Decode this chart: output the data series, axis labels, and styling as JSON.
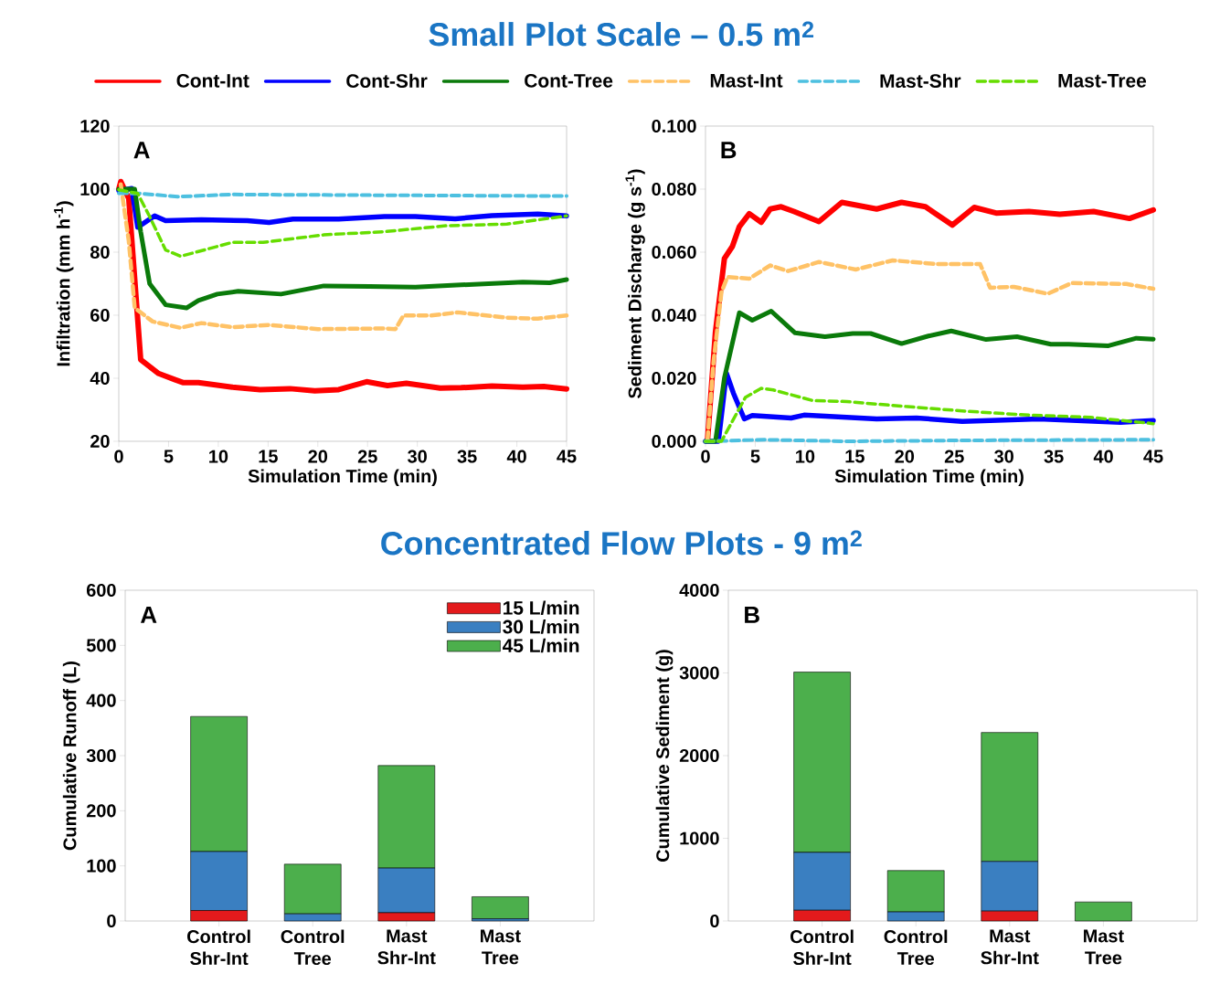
{
  "chart_data": [
    {
      "type": "line",
      "title": "Small Plot Scale – 0.5 m$^{2}$",
      "xlabel": "Simulation Time (min)",
      "ylabel": "Infiltration (mm h$^{-1}$)",
      "annotations": [
        "A"
      ],
      "legend": "top",
      "xlim": [
        0,
        45
      ],
      "xticks": [
        0,
        5,
        10,
        15,
        20,
        25,
        30,
        35,
        40,
        45
      ],
      "ylim": [
        20,
        120
      ],
      "yticks": [
        20,
        40,
        60,
        80,
        100,
        120
      ],
      "series": [
        {
          "name": "Cont-Int",
          "color": "#ff0000",
          "line_style": "solid",
          "x": [
            0,
            0.2,
            1,
            2.2,
            4,
            5.6,
            6.5,
            8,
            11.4,
            14.2,
            17.2,
            19.7,
            22.1,
            24.9,
            27,
            28.9,
            32.3,
            34.4,
            37.5,
            40.6,
            42.7,
            45
          ],
          "values": [
            100,
            102.4,
            97,
            45.9,
            41.5,
            39.6,
            38.6,
            38.6,
            37.2,
            36.4,
            36.7,
            36,
            36.4,
            38.9,
            37.7,
            38.4,
            36.9,
            37,
            37.5,
            37.2,
            37.4,
            36.6
          ]
        },
        {
          "name": "Cont-Shr",
          "color": "#0000ff",
          "line_style": "solid",
          "x": [
            0,
            1.3,
            1.9,
            3.6,
            4.7,
            8.3,
            12.9,
            15.1,
            17.5,
            22.1,
            26.7,
            29.8,
            33.8,
            37.5,
            42.1,
            45
          ],
          "values": [
            99.5,
            100.2,
            87.9,
            91.5,
            90,
            90.3,
            90,
            89.4,
            90.5,
            90.5,
            91.3,
            91.3,
            90.6,
            91.6,
            92.1,
            91.5
          ]
        },
        {
          "name": "Cont-Tree",
          "color": "#0a7a0a",
          "line_style": "solid",
          "x": [
            0,
            1.6,
            2.2,
            3.1,
            4.7,
            6.8,
            8,
            9.9,
            12,
            16.3,
            20.6,
            25.2,
            29.8,
            34.4,
            40.6,
            43.3,
            45
          ],
          "values": [
            100,
            100,
            86.5,
            70,
            63.3,
            62.3,
            64.7,
            66.7,
            67.6,
            66.7,
            69.3,
            69.1,
            68.9,
            69.6,
            70.5,
            70.3,
            71.3
          ]
        },
        {
          "name": "Mast-Int",
          "color": "#ffc266",
          "line_style": "dashed",
          "x": [
            0.2,
            1,
            1.6,
            3.4,
            6.2,
            8.3,
            11.4,
            15.1,
            20,
            26.7,
            27.8,
            28.6,
            31.3,
            34.1,
            39,
            42.1,
            45
          ],
          "values": [
            101.5,
            83.6,
            62.3,
            58,
            56,
            57.5,
            56.2,
            56.9,
            55.6,
            55.8,
            55.6,
            59.9,
            59.9,
            60.9,
            59.2,
            58.9,
            59.9
          ]
        },
        {
          "name": "Mast-Shr",
          "color": "#4dc0e0",
          "line_style": "dashed",
          "x": [
            0,
            2.2,
            5.9,
            11.4,
            23.7,
            45
          ],
          "values": [
            98.7,
            98.6,
            97.6,
            98.3,
            98.1,
            97.8
          ]
        },
        {
          "name": "Mast-Tree",
          "color": "#66dd00",
          "line_style": "dashed",
          "x": [
            0,
            1.9,
            3.1,
            4.7,
            6.2,
            8,
            11.4,
            14.5,
            20.6,
            26.7,
            32.9,
            39,
            45
          ],
          "values": [
            99.8,
            98.6,
            91.3,
            80.7,
            78.7,
            80.2,
            83.1,
            83.1,
            85.5,
            86.5,
            88.4,
            88.9,
            91.5
          ]
        }
      ]
    },
    {
      "type": "line",
      "xlabel": "Simulation Time (min)",
      "ylabel": "Sediment Discharge (g s$^{-1}$)",
      "annotations": [
        "B"
      ],
      "xlim": [
        0,
        45
      ],
      "xticks": [
        0,
        5,
        10,
        15,
        20,
        25,
        30,
        35,
        40,
        45
      ],
      "ylim": [
        0,
        0.1
      ],
      "yticks": [
        {
          "value": 0,
          "label": "0.000"
        },
        {
          "value": 0.02,
          "label": "0.020"
        },
        {
          "value": 0.04,
          "label": "0.040"
        },
        {
          "value": 0.06,
          "label": "0.060"
        },
        {
          "value": 0.08,
          "label": "0.080"
        },
        {
          "value": 0.1,
          "label": "0.100"
        }
      ],
      "series": [
        {
          "color": "#ff0000",
          "line_style": "solid",
          "x": [
            0.2,
            1,
            1.9,
            2.7,
            3.4,
            4.4,
            5.6,
            6.5,
            7.6,
            8.9,
            11.4,
            13.7,
            17.2,
            19.7,
            22.1,
            24.8,
            27,
            29.2,
            32.5,
            35.6,
            39,
            42.6,
            45
          ],
          "values": [
            0.0003,
            0.0347,
            0.058,
            0.0618,
            0.0681,
            0.0722,
            0.0695,
            0.0737,
            0.0744,
            0.0729,
            0.0697,
            0.0758,
            0.0737,
            0.0758,
            0.0744,
            0.0686,
            0.0742,
            0.0724,
            0.0729,
            0.072,
            0.0729,
            0.0707,
            0.0734
          ]
        },
        {
          "color": "#0000ff",
          "line_style": "solid",
          "x": [
            0,
            1.3,
            2.1,
            2.8,
            3.9,
            4.7,
            8.6,
            9.9,
            17.2,
            21.2,
            25.8,
            33.5,
            41.7,
            45
          ],
          "values": [
            0,
            0,
            0.0216,
            0.0153,
            0.0071,
            0.0082,
            0.0074,
            0.0083,
            0.0071,
            0.0074,
            0.0063,
            0.0071,
            0.006,
            0.0066
          ]
        },
        {
          "color": "#0a7a0a",
          "line_style": "solid",
          "x": [
            0,
            1,
            1.9,
            3.4,
            4.7,
            6.6,
            9,
            12,
            14.8,
            16.6,
            19.7,
            22.4,
            24.7,
            28.2,
            31.3,
            34.7,
            36.5,
            40.5,
            43.3,
            45
          ],
          "values": [
            0,
            0,
            0.0201,
            0.0408,
            0.0384,
            0.0413,
            0.0344,
            0.0332,
            0.0342,
            0.0342,
            0.031,
            0.0334,
            0.035,
            0.0323,
            0.0332,
            0.0308,
            0.0308,
            0.0303,
            0.0327,
            0.0324
          ]
        },
        {
          "color": "#ffc266",
          "line_style": "dashed",
          "x": [
            0.2,
            0.8,
            1.6,
            2.2,
            4.4,
            6.5,
            8.3,
            11.4,
            15.1,
            18.8,
            23.3,
            27.6,
            28.6,
            31,
            34.4,
            36.8,
            42.3,
            45
          ],
          "values": [
            0.0003,
            0.025,
            0.0473,
            0.0521,
            0.0516,
            0.0558,
            0.054,
            0.0569,
            0.0545,
            0.0574,
            0.0562,
            0.0562,
            0.0487,
            0.049,
            0.0468,
            0.0502,
            0.0499,
            0.0484
          ]
        },
        {
          "color": "#4dc0e0",
          "line_style": "dashed",
          "x": [
            0,
            5.9,
            14.2,
            26.4,
            45
          ],
          "values": [
            0,
            0.0005,
            0,
            0.0003,
            0.0005
          ]
        },
        {
          "color": "#66dd00",
          "line_style": "dashed",
          "x": [
            0,
            1.6,
            4,
            5.6,
            6.8,
            10.8,
            14.2,
            20.3,
            26.4,
            32.5,
            38.7,
            45
          ],
          "values": [
            0,
            0,
            0.0139,
            0.0168,
            0.0163,
            0.0129,
            0.0126,
            0.011,
            0.0095,
            0.0083,
            0.0076,
            0.0056
          ]
        }
      ]
    },
    {
      "type": "bar",
      "stacked": true,
      "title": "Concentrated Flow Plots - 9 m$^{2}$",
      "ylabel": "Cumulative Runoff (L)",
      "annotations": [
        "A"
      ],
      "legend": "top right",
      "categories": [
        "Control Shr-Int",
        "Control Tree",
        "Mast Shr-Int",
        "Mast Tree"
      ],
      "ylim": [
        0,
        600
      ],
      "yticks": [
        0,
        100,
        200,
        300,
        400,
        500,
        600
      ],
      "series": [
        {
          "name": "15 L/min",
          "color": "#e31a1c",
          "values": [
            19,
            0,
            15,
            0
          ]
        },
        {
          "name": "30 L/min",
          "color": "#3a7fc1",
          "values": [
            107,
            13,
            81,
            4
          ]
        },
        {
          "name": "45 L/min",
          "color": "#4caf4c",
          "values": [
            245,
            90,
            186,
            40
          ]
        }
      ]
    },
    {
      "type": "bar",
      "stacked": true,
      "ylabel": "Cumulative Sediment (g)",
      "annotations": [
        "B"
      ],
      "categories": [
        "Control Shr-Int",
        "Control Tree",
        "Mast Shr-Int",
        "Mast Tree"
      ],
      "ylim": [
        0,
        4000
      ],
      "yticks": [
        0,
        1000,
        2000,
        3000,
        4000
      ],
      "series": [
        {
          "color": "#e31a1c",
          "values": [
            130,
            0,
            120,
            0
          ]
        },
        {
          "color": "#3a7fc1",
          "values": [
            700,
            110,
            600,
            0
          ]
        },
        {
          "color": "#4caf4c",
          "values": [
            2180,
            500,
            1560,
            230
          ]
        }
      ]
    }
  ]
}
